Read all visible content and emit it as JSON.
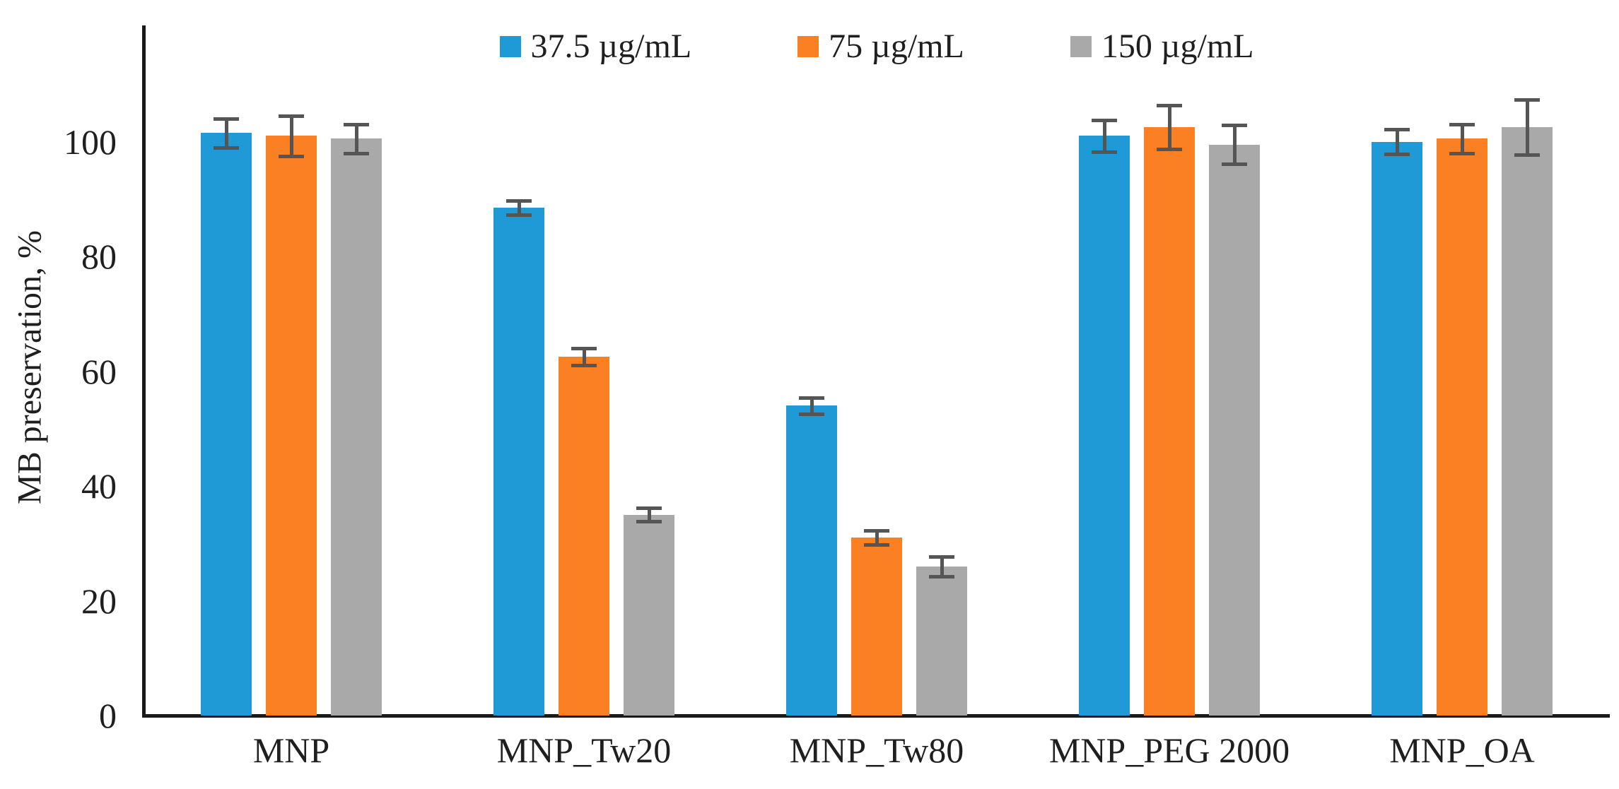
{
  "chart_data": {
    "type": "bar",
    "title": "",
    "ylabel": "MB preservation, %",
    "xlabel": "",
    "categories": [
      "MNP",
      "MNP_Tw20",
      "MNP_Tw80",
      "MNP_PEG 2000",
      "MNP_OA"
    ],
    "series": [
      {
        "name": "37.5 µg/mL",
        "color": "#1f9ad7",
        "values": [
          101.5,
          88.5,
          54,
          101,
          100
        ],
        "errors": [
          2.5,
          1.2,
          1.4,
          2.8,
          2.1
        ]
      },
      {
        "name": "75 µg/mL",
        "color": "#fb7f23",
        "values": [
          101,
          62.5,
          31,
          102.5,
          100.5
        ],
        "errors": [
          3.5,
          1.5,
          1.2,
          3.8,
          2.5
        ]
      },
      {
        "name": "150 µg/mL",
        "color": "#a9a9a9",
        "values": [
          100.5,
          35,
          26,
          99.5,
          102.5
        ],
        "errors": [
          2.5,
          1.2,
          1.7,
          3.4,
          4.8
        ]
      }
    ],
    "yticks": [
      0,
      20,
      40,
      60,
      80,
      100
    ],
    "ylim": [
      0,
      120
    ],
    "grid": false,
    "legend_position": "top",
    "error_bar_color": "#555555",
    "axis_color": "#1a1a1a"
  }
}
